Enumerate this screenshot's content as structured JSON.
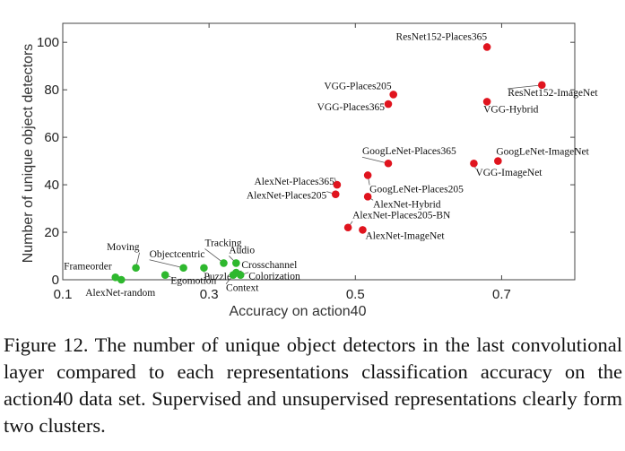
{
  "chart_data": {
    "type": "scatter",
    "title": "",
    "xlabel": "Accuracy on action40",
    "ylabel": "Number of unique object detectors",
    "xlim": [
      0.1,
      0.8
    ],
    "ylim": [
      0,
      108
    ],
    "xticks": [
      0.1,
      0.3,
      0.5,
      0.7
    ],
    "yticks": [
      0,
      20,
      40,
      60,
      80,
      100
    ],
    "grid": false,
    "legend": "none",
    "colors": {
      "supervised": "#e0141e",
      "unsupervised": "#2eb82e"
    },
    "series": [
      {
        "group": "supervised",
        "points": [
          {
            "label": "ResNet152-Places365",
            "x": 0.68,
            "y": 98
          },
          {
            "label": "ResNet152-ImageNet",
            "x": 0.755,
            "y": 82
          },
          {
            "label": "VGG-Places205",
            "x": 0.552,
            "y": 78
          },
          {
            "label": "VGG-Places365",
            "x": 0.545,
            "y": 74
          },
          {
            "label": "VGG-Hybrid",
            "x": 0.68,
            "y": 75
          },
          {
            "label": "GoogLeNet-Places365",
            "x": 0.545,
            "y": 49
          },
          {
            "label": "GoogLeNet-ImageNet",
            "x": 0.695,
            "y": 50
          },
          {
            "label": "VGG-ImageNet",
            "x": 0.662,
            "y": 49
          },
          {
            "label": "GoogLeNet-Places205",
            "x": 0.517,
            "y": 44
          },
          {
            "label": "AlexNet-Places365",
            "x": 0.475,
            "y": 40
          },
          {
            "label": "AlexNet-Places205",
            "x": 0.473,
            "y": 36
          },
          {
            "label": "AlexNet-Hybrid",
            "x": 0.517,
            "y": 35
          },
          {
            "label": "AlexNet-Places205-BN",
            "x": 0.49,
            "y": 22
          },
          {
            "label": "AlexNet-ImageNet",
            "x": 0.51,
            "y": 21
          }
        ]
      },
      {
        "group": "unsupervised",
        "points": [
          {
            "label": "Frameorder",
            "x": 0.172,
            "y": 1
          },
          {
            "label": "AlexNet-random",
            "x": 0.18,
            "y": 0
          },
          {
            "label": "Moving",
            "x": 0.2,
            "y": 5
          },
          {
            "label": "Egomotion",
            "x": 0.24,
            "y": 2
          },
          {
            "label": "Objectcentric",
            "x": 0.265,
            "y": 5
          },
          {
            "label": "Puzzle",
            "x": 0.293,
            "y": 5
          },
          {
            "label": "Tracking",
            "x": 0.32,
            "y": 7
          },
          {
            "label": "Audio",
            "x": 0.337,
            "y": 7
          },
          {
            "label": "Crosschannel",
            "x": 0.337,
            "y": 3
          },
          {
            "label": "Colorization",
            "x": 0.343,
            "y": 2
          },
          {
            "label": "Context",
            "x": 0.333,
            "y": 2
          }
        ]
      }
    ]
  },
  "caption": "Figure 12. The number of unique object detectors in the last convolutional layer compared to each representations classification accuracy on the action40 data set. Supervised and unsupervised representations clearly form two clusters."
}
